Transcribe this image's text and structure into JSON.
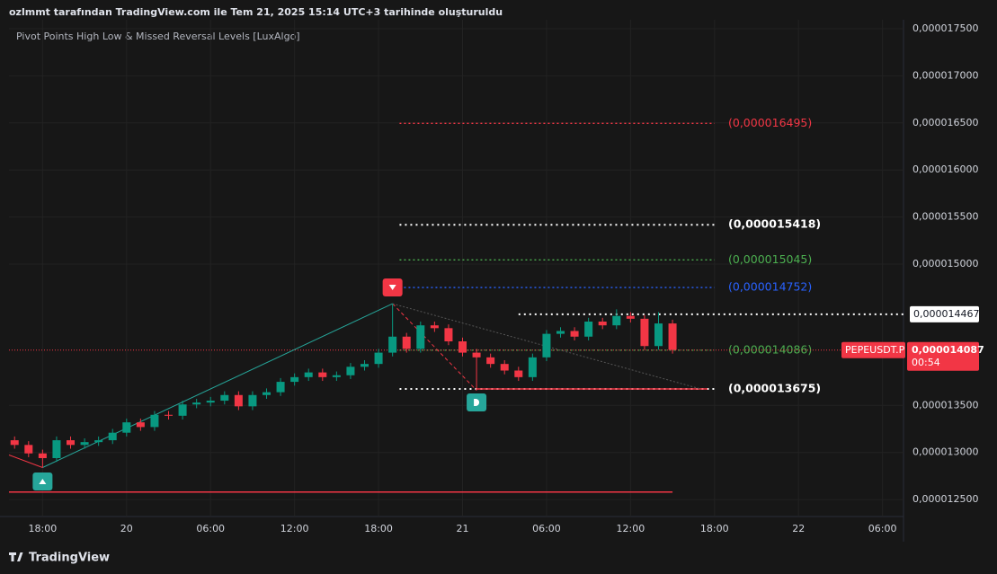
{
  "chart_data": {
    "type": "candlestick",
    "header": "ozlmmt tarafından TradingView.com ile Tem 21, 2025 15:14 UTC+3 tarihinde oluşturuldu",
    "indicator": "Pivot Points High Low & Missed Reversal Levels [LuxAlgo]",
    "brand": "TradingView",
    "symbol": "PEPEUSDT.P",
    "last_price": {
      "value": 1.4087e-05,
      "label": "0,000014087"
    },
    "countdown": "00:54",
    "marked_price": {
      "value": 1.4467e-05,
      "label": "0,000014467"
    },
    "x": [
      -2,
      -1,
      0,
      1,
      2,
      3,
      4,
      5,
      6,
      7,
      8,
      9,
      10,
      11,
      12,
      13,
      14,
      15,
      16,
      17,
      18,
      19,
      20,
      21,
      22,
      23,
      24,
      25,
      26,
      27,
      28,
      29,
      30,
      31,
      32,
      33,
      34,
      35,
      36,
      37,
      38,
      39,
      40,
      41,
      42,
      43,
      44,
      45
    ],
    "open": [
      1.313e-05,
      1.308e-05,
      1.299e-05,
      1.294e-05,
      1.313e-05,
      1.308e-05,
      1.311e-05,
      1.313e-05,
      1.321e-05,
      1.332e-05,
      1.327e-05,
      1.34e-05,
      1.339e-05,
      1.351e-05,
      1.353e-05,
      1.355e-05,
      1.361e-05,
      1.349e-05,
      1.361e-05,
      1.364e-05,
      1.375e-05,
      1.38e-05,
      1.385e-05,
      1.38e-05,
      1.382e-05,
      1.391e-05,
      1.394e-05,
      1.406e-05,
      1.423e-05,
      1.41e-05,
      1.435e-05,
      1.432e-05,
      1.418e-05,
      1.406e-05,
      1.401e-05,
      1.394e-05,
      1.387e-05,
      1.38e-05,
      1.401e-05,
      1.426e-05,
      1.429e-05,
      1.423e-05,
      1.439e-05,
      1.435e-05,
      1.445e-05,
      1.442e-05,
      1.413e-05,
      1.437e-05
    ],
    "high": [
      1.317e-05,
      1.312e-05,
      1.303e-05,
      1.317e-05,
      1.317e-05,
      1.315e-05,
      1.317e-05,
      1.325e-05,
      1.336e-05,
      1.336e-05,
      1.344e-05,
      1.344e-05,
      1.355e-05,
      1.357e-05,
      1.359e-05,
      1.365e-05,
      1.365e-05,
      1.365e-05,
      1.368e-05,
      1.379e-05,
      1.384e-05,
      1.389e-05,
      1.389e-05,
      1.386e-05,
      1.395e-05,
      1.398e-05,
      1.41e-05,
      1.458e-05,
      1.427e-05,
      1.439e-05,
      1.439e-05,
      1.436e-05,
      1.422e-05,
      1.41e-05,
      1.405e-05,
      1.398e-05,
      1.391e-05,
      1.405e-05,
      1.43e-05,
      1.433e-05,
      1.433e-05,
      1.443e-05,
      1.443e-05,
      1.452e-05,
      1.449e-05,
      1.446e-05,
      1.449e-05,
      1.441e-05
    ],
    "low": [
      1.304e-05,
      1.295e-05,
      1.284e-05,
      1.29e-05,
      1.304e-05,
      1.304e-05,
      1.307e-05,
      1.309e-05,
      1.317e-05,
      1.323e-05,
      1.323e-05,
      1.335e-05,
      1.335e-05,
      1.347e-05,
      1.349e-05,
      1.351e-05,
      1.345e-05,
      1.345e-05,
      1.357e-05,
      1.36e-05,
      1.371e-05,
      1.376e-05,
      1.376e-05,
      1.376e-05,
      1.378e-05,
      1.387e-05,
      1.39e-05,
      1.402e-05,
      1.406e-05,
      1.406e-05,
      1.428e-05,
      1.414e-05,
      1.402e-05,
      1.366e-05,
      1.39e-05,
      1.383e-05,
      1.376e-05,
      1.376e-05,
      1.397e-05,
      1.422e-05,
      1.419e-05,
      1.419e-05,
      1.431e-05,
      1.431e-05,
      1.438e-05,
      1.409e-05,
      1.409e-05,
      1.405e-05
    ],
    "close": [
      1.308e-05,
      1.299e-05,
      1.294e-05,
      1.313e-05,
      1.308e-05,
      1.311e-05,
      1.313e-05,
      1.321e-05,
      1.332e-05,
      1.327e-05,
      1.34e-05,
      1.339e-05,
      1.351e-05,
      1.353e-05,
      1.355e-05,
      1.361e-05,
      1.349e-05,
      1.361e-05,
      1.364e-05,
      1.375e-05,
      1.38e-05,
      1.385e-05,
      1.38e-05,
      1.382e-05,
      1.391e-05,
      1.394e-05,
      1.406e-05,
      1.423e-05,
      1.41e-05,
      1.435e-05,
      1.432e-05,
      1.418e-05,
      1.406e-05,
      1.401e-05,
      1.394e-05,
      1.387e-05,
      1.38e-05,
      1.401e-05,
      1.426e-05,
      1.429e-05,
      1.423e-05,
      1.439e-05,
      1.435e-05,
      1.445e-05,
      1.442e-05,
      1.413e-05,
      1.437e-05,
      1.409e-05
    ],
    "up_color": "#089981",
    "down_color": "#f23645",
    "levels": [
      {
        "value": 1.6495e-05,
        "label": "(0,000016495)",
        "color": "#f23645",
        "bold": false
      },
      {
        "value": 1.5418e-05,
        "label": "(0,000015418)",
        "color": "#ffffff",
        "bold": true
      },
      {
        "value": 1.5045e-05,
        "label": "(0,000015045)",
        "color": "#4caf50",
        "bold": false
      },
      {
        "value": 1.4752e-05,
        "label": "(0,000014752)",
        "color": "#2962ff",
        "bold": false
      },
      {
        "value": 1.4086e-05,
        "label": "(0,000014086)",
        "color": "#4caf50",
        "bold": false
      },
      {
        "value": 1.3675e-05,
        "label": "(0,000013675)",
        "color": "#ffffff",
        "bold": true
      }
    ],
    "support_line": 1.258e-05,
    "xlim": [
      -2.4,
      61.5
    ],
    "xticks": [
      {
        "value": 0,
        "label": "18:00"
      },
      {
        "value": 6,
        "label": "20"
      },
      {
        "value": 12,
        "label": "06:00"
      },
      {
        "value": 18,
        "label": "12:00"
      },
      {
        "value": 24,
        "label": "18:00"
      },
      {
        "value": 30,
        "label": "21"
      },
      {
        "value": 36,
        "label": "06:00"
      },
      {
        "value": 42,
        "label": "12:00"
      },
      {
        "value": 48,
        "label": "18:00"
      },
      {
        "value": 54,
        "label": "22"
      },
      {
        "value": 60,
        "label": "06:00"
      }
    ],
    "ylim": [
      1.232e-05,
      1.7595e-05
    ],
    "yticks": [
      {
        "value": 1.25e-05,
        "label": "0,000012500"
      },
      {
        "value": 1.3e-05,
        "label": "0,000013000"
      },
      {
        "value": 1.35e-05,
        "label": "0,000013500"
      },
      {
        "value": 1.5e-05,
        "label": "0,000015000"
      },
      {
        "value": 1.55e-05,
        "label": "0,000015500"
      },
      {
        "value": 1.6e-05,
        "label": "0,000016000"
      },
      {
        "value": 1.65e-05,
        "label": "0,000016500"
      },
      {
        "value": 1.7e-05,
        "label": "0,000017000"
      },
      {
        "value": 1.75e-05,
        "label": "0,000017500"
      }
    ],
    "grid": true
  }
}
